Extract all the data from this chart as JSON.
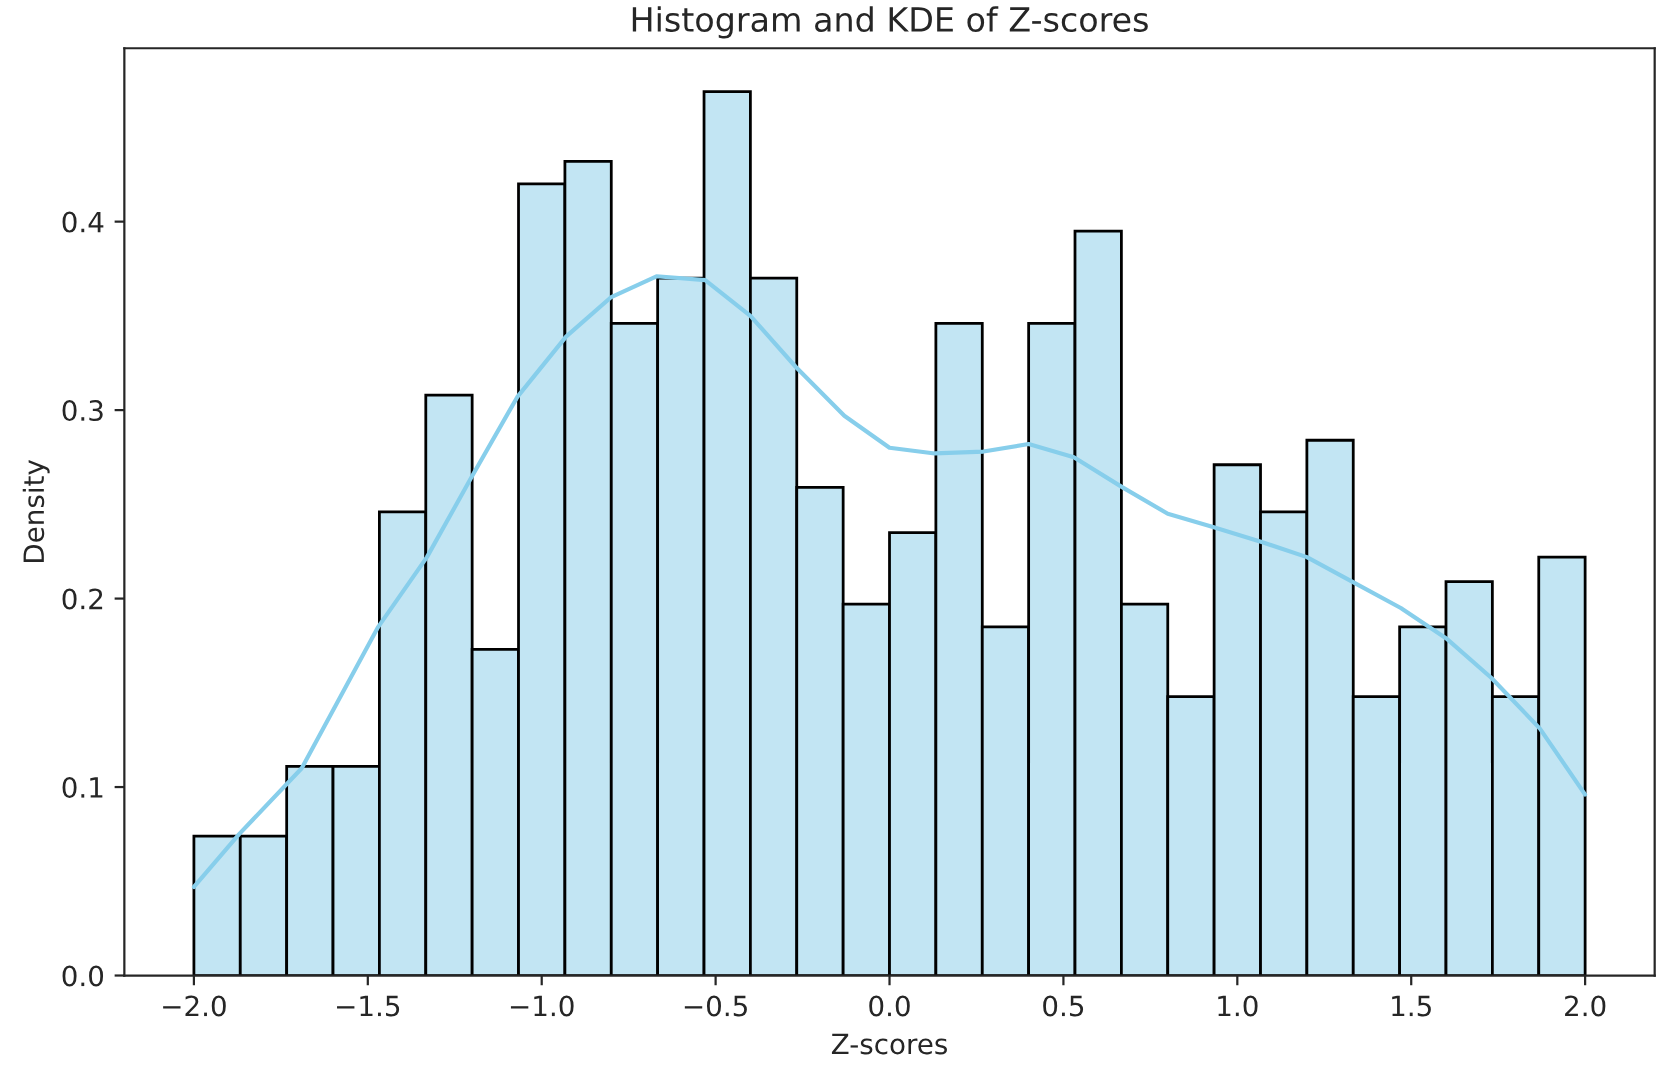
{
  "chart_data": {
    "type": "histogram",
    "title": "Histogram and KDE of Z-scores",
    "xlabel": "Z-scores",
    "ylabel": "Density",
    "bins": [
      -2.0,
      -1.8667,
      -1.7333,
      -1.6,
      -1.4667,
      -1.3333,
      -1.2,
      -1.0667,
      -0.9333,
      -0.8,
      -0.6667,
      -0.5333,
      -0.4,
      -0.2667,
      -0.1333,
      0.0,
      0.1333,
      0.2667,
      0.4,
      0.5333,
      0.6667,
      0.8,
      0.9333,
      1.0667,
      1.2,
      1.3333,
      1.4667,
      1.6,
      1.7333,
      1.8667,
      2.0
    ],
    "series": [
      {
        "color": "#c2e5f3",
        "values": [
          0.074,
          0.074,
          0.111,
          0.111,
          0.246,
          0.308,
          0.173,
          0.42,
          0.432,
          0.346,
          0.37,
          0.469,
          0.37,
          0.259,
          0.197,
          0.235,
          0.346,
          0.185,
          0.346,
          0.395,
          0.197,
          0.148,
          0.271,
          0.246,
          0.284,
          0.148,
          0.185,
          0.209,
          0.148,
          0.222
        ]
      },
      {
        "type": "line",
        "color": "#87ceeb",
        "x": [
          -2.0,
          -1.87,
          -1.69,
          -1.47,
          -1.33,
          -1.2,
          -1.07,
          -0.93,
          -0.8,
          -0.67,
          -0.53,
          -0.4,
          -0.27,
          -0.13,
          0.0,
          0.13,
          0.27,
          0.4,
          0.53,
          0.67,
          0.8,
          0.93,
          1.07,
          1.2,
          1.33,
          1.47,
          1.6,
          1.73,
          1.87,
          2.0
        ],
        "values": [
          0.047,
          0.075,
          0.11,
          0.185,
          0.222,
          0.265,
          0.307,
          0.339,
          0.36,
          0.371,
          0.369,
          0.35,
          0.323,
          0.297,
          0.28,
          0.277,
          0.278,
          0.282,
          0.275,
          0.259,
          0.245,
          0.238,
          0.23,
          0.222,
          0.209,
          0.195,
          0.179,
          0.158,
          0.131,
          0.096
        ]
      }
    ],
    "xlim": [
      -2.2,
      2.2
    ],
    "xticks": [
      {
        "value": -2.0,
        "label": "−2.0"
      },
      {
        "value": -1.5,
        "label": "−1.5"
      },
      {
        "value": -1.0,
        "label": "−1.0"
      },
      {
        "value": -0.5,
        "label": "−0.5"
      },
      {
        "value": 0.0,
        "label": "0.0"
      },
      {
        "value": 0.5,
        "label": "0.5"
      },
      {
        "value": 1.0,
        "label": "1.0"
      },
      {
        "value": 1.5,
        "label": "1.5"
      },
      {
        "value": 2.0,
        "label": "2.0"
      }
    ],
    "ylim": [
      0,
      0.492
    ],
    "yticks": [
      {
        "value": 0.0,
        "label": "0.0"
      },
      {
        "value": 0.1,
        "label": "0.1"
      },
      {
        "value": 0.2,
        "label": "0.2"
      },
      {
        "value": 0.3,
        "label": "0.3"
      },
      {
        "value": 0.4,
        "label": "0.4"
      }
    ],
    "grid": false,
    "legend": false
  }
}
